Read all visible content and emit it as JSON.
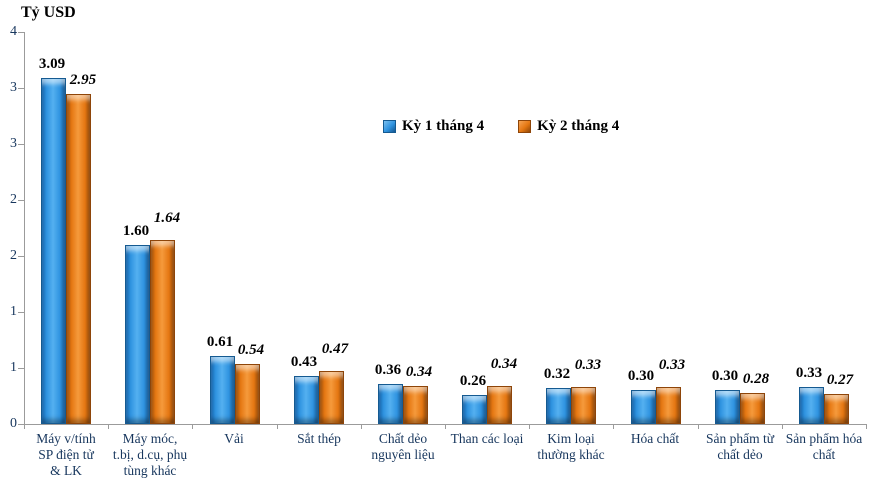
{
  "chart_data": {
    "type": "bar",
    "title": "Tỷ USD",
    "xlabel": "",
    "ylabel": "Tỷ USD",
    "ylim": [
      0,
      3.5
    ],
    "y_tick_step": 0.5,
    "y_tick_labels_bottom_to_top": [
      "0",
      "1",
      "1",
      "2",
      "2",
      "3",
      "3",
      "4"
    ],
    "grid": false,
    "legend_position": "top-center",
    "categories": [
      "Máy v/tính\nSP điện tử\n& LK",
      "Máy móc,\nt.bị, d.cụ, phụ\ntùng khác",
      "Vải",
      "Sắt thép",
      "Chất dẻo\nnguyên liệu",
      "Than các loại",
      "Kim loại\nthường khác",
      "Hóa chất",
      "Sản phẩm từ\nchất dẻo",
      "Sản phẩm hóa\nchất"
    ],
    "series": [
      {
        "name": "Kỳ 1 tháng 4",
        "color": "#2F93E0",
        "values": [
          3.09,
          1.6,
          0.61,
          0.43,
          0.36,
          0.26,
          0.32,
          0.3,
          0.3,
          0.33
        ]
      },
      {
        "name": "Kỳ 2 tháng 4",
        "color": "#E57712",
        "values": [
          2.95,
          1.64,
          0.54,
          0.47,
          0.34,
          0.34,
          0.33,
          0.33,
          0.28,
          0.27
        ]
      }
    ],
    "axis_label_color": "#17365D",
    "axis_line_color": "#9B9B9B",
    "value_label_decimals": 2
  }
}
